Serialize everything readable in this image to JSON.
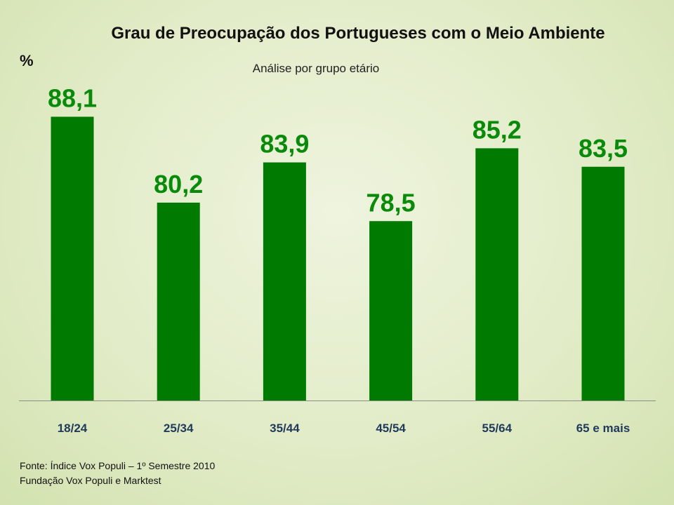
{
  "chart_data": {
    "type": "bar",
    "title": "Grau de Preocupação dos Portugueses com o Meio Ambiente",
    "subtitle": "Análise por grupo etário",
    "ylabel": "%",
    "xlabel": "",
    "categories": [
      "18/24",
      "25/34",
      "35/44",
      "45/54",
      "55/64",
      "65 e mais"
    ],
    "values": [
      88.1,
      80.2,
      83.9,
      78.5,
      85.2,
      83.5
    ],
    "value_labels": [
      "88,1",
      "80,2",
      "83,9",
      "78,5",
      "85,2",
      "83,5"
    ],
    "ylim": [
      62,
      90
    ],
    "grid": false,
    "legend": "none",
    "bar_color": "#007a00",
    "label_color": "#0a8a0a",
    "tick_color": "#1f3a5a"
  },
  "source": {
    "line1": "Fonte: Índice Vox Populi – 1º Semestre 2010",
    "line2": "Fundação Vox Populi e Marktest"
  }
}
